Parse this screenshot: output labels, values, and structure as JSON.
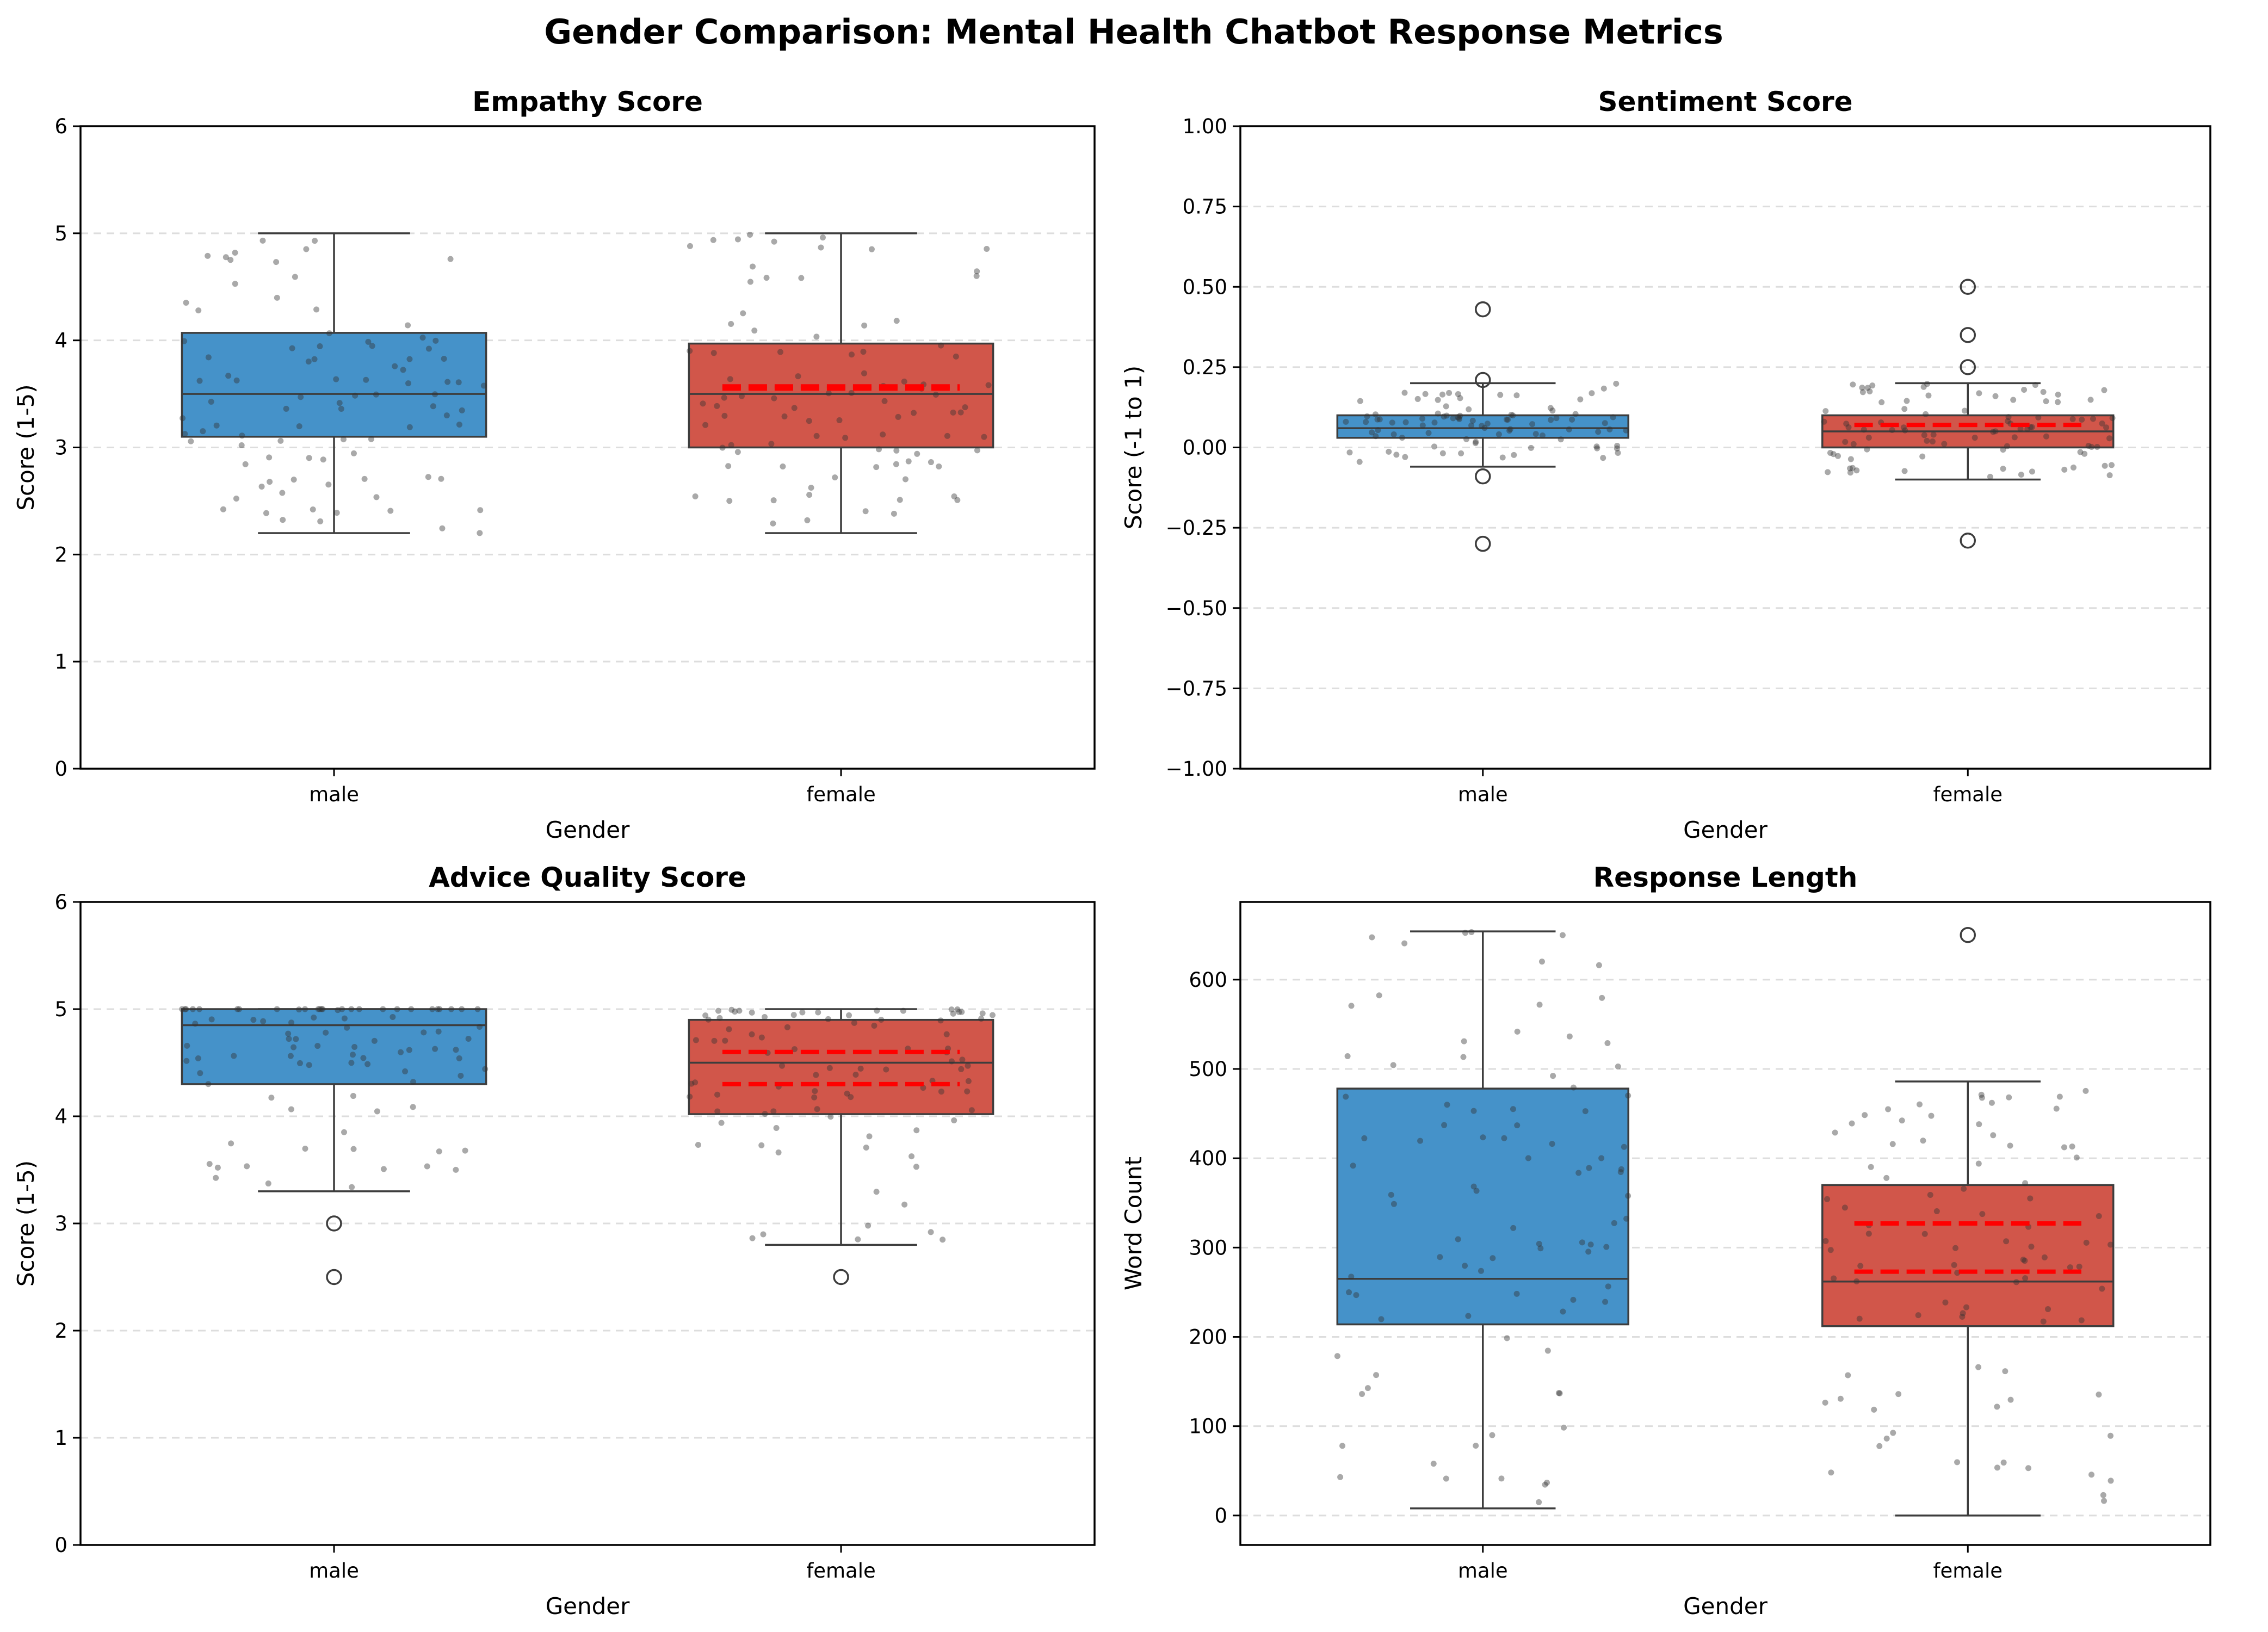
{
  "figure": {
    "suptitle": "Gender Comparison: Mental Health Chatbot Response Metrics"
  },
  "colors": {
    "male": "#4592c9",
    "female": "#d1564a",
    "mean_line": "#ff0000",
    "points": "#333333",
    "grid": "#dddddd"
  },
  "chart_data": [
    {
      "type": "box",
      "title": "Empathy Score",
      "xlabel": "Gender",
      "ylabel": "Score (1-5)",
      "categories": [
        "male",
        "female"
      ],
      "ylim": [
        0,
        6
      ],
      "yticks": [
        0,
        1,
        2,
        3,
        4,
        5,
        6
      ],
      "ytick_labels": [
        "0",
        "1",
        "2",
        "3",
        "4",
        "5",
        "6"
      ],
      "grid": "horizontal dashed",
      "boxes": [
        {
          "name": "male",
          "whisker_low": 2.2,
          "q1": 3.1,
          "median": 3.5,
          "q3": 4.07,
          "whisker_high": 5.0,
          "outliers": [],
          "mean_lines": []
        },
        {
          "name": "female",
          "whisker_low": 2.2,
          "q1": 3.0,
          "median": 3.5,
          "q3": 3.97,
          "whisker_high": 5.0,
          "outliers": [],
          "mean_lines": [
            3.57,
            3.55
          ]
        }
      ]
    },
    {
      "type": "box",
      "title": "Sentiment Score",
      "xlabel": "Gender",
      "ylabel": "Score (-1 to 1)",
      "categories": [
        "male",
        "female"
      ],
      "ylim": [
        -1,
        1
      ],
      "yticks": [
        -1,
        -0.75,
        -0.5,
        -0.25,
        0,
        0.25,
        0.5,
        0.75,
        1
      ],
      "ytick_labels": [
        "−1.00",
        "−0.75",
        "−0.50",
        "−0.25",
        "0.00",
        "0.25",
        "0.50",
        "0.75",
        "1.00"
      ],
      "grid": "horizontal dashed",
      "boxes": [
        {
          "name": "male",
          "whisker_low": -0.06,
          "q1": 0.03,
          "median": 0.06,
          "q3": 0.1,
          "whisker_high": 0.2,
          "outliers": [
            0.43,
            0.21,
            -0.09,
            -0.3
          ],
          "mean_lines": []
        },
        {
          "name": "female",
          "whisker_low": -0.1,
          "q1": 0.0,
          "median": 0.05,
          "q3": 0.1,
          "whisker_high": 0.2,
          "outliers": [
            0.5,
            0.35,
            0.25,
            -0.29
          ],
          "mean_lines": [
            0.07
          ]
        }
      ]
    },
    {
      "type": "box",
      "title": "Advice Quality Score",
      "xlabel": "Gender",
      "ylabel": "Score (1-5)",
      "categories": [
        "male",
        "female"
      ],
      "ylim": [
        0,
        6
      ],
      "yticks": [
        0,
        1,
        2,
        3,
        4,
        5,
        6
      ],
      "ytick_labels": [
        "0",
        "1",
        "2",
        "3",
        "4",
        "5",
        "6"
      ],
      "grid": "horizontal dashed",
      "boxes": [
        {
          "name": "male",
          "whisker_low": 3.3,
          "q1": 4.3,
          "median": 4.85,
          "q3": 5.0,
          "whisker_high": 5.0,
          "outliers": [
            3.0,
            2.5
          ],
          "mean_lines": []
        },
        {
          "name": "female",
          "whisker_low": 2.8,
          "q1": 4.02,
          "median": 4.5,
          "q3": 4.9,
          "whisker_high": 5.0,
          "outliers": [
            2.5
          ],
          "mean_lines": [
            4.6,
            4.3
          ]
        }
      ]
    },
    {
      "type": "box",
      "title": "Response Length",
      "xlabel": "Gender",
      "ylabel": "Word Count",
      "categories": [
        "male",
        "female"
      ],
      "ylim": [
        -33,
        687
      ],
      "yticks": [
        0,
        100,
        200,
        300,
        400,
        500,
        600
      ],
      "ytick_labels": [
        "0",
        "100",
        "200",
        "300",
        "400",
        "500",
        "600"
      ],
      "grid": "horizontal dashed",
      "boxes": [
        {
          "name": "male",
          "whisker_low": 8,
          "q1": 214,
          "median": 265,
          "q3": 478,
          "whisker_high": 654,
          "outliers": [],
          "mean_lines": []
        },
        {
          "name": "female",
          "whisker_low": 0,
          "q1": 212,
          "median": 262,
          "q3": 370,
          "whisker_high": 486,
          "outliers": [
            650
          ],
          "mean_lines": [
            327,
            273
          ]
        }
      ]
    }
  ]
}
